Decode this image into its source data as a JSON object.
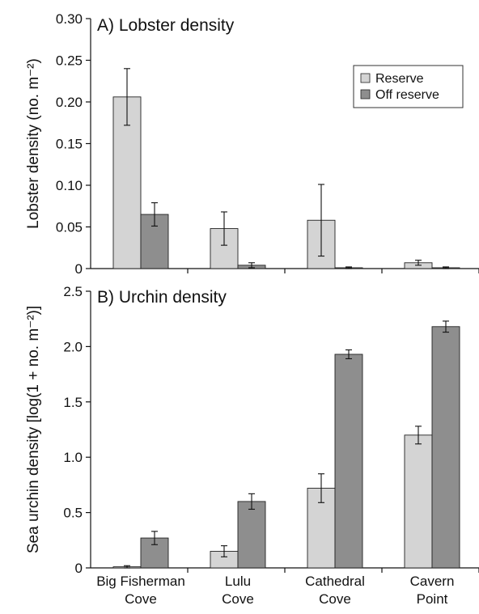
{
  "colors": {
    "reserve": "#d4d4d4",
    "off_reserve": "#8e8e8e",
    "bar_stroke": "#222222",
    "axis": "#111111"
  },
  "chart_data": [
    {
      "type": "bar",
      "title": "A) Lobster density",
      "ylabel": "Lobster density (no. m⁻²)",
      "ylim": [
        0,
        0.3
      ],
      "yticks": [
        "0",
        "0.05",
        "0.10",
        "0.15",
        "0.20",
        "0.25",
        "0.30"
      ],
      "categories": [
        "Big Fisherman Cove",
        "Lulu Cove",
        "Cathedral Cove",
        "Cavern Point"
      ],
      "show_category_labels": false,
      "legend": {
        "position": "top-right",
        "entries": [
          "Reserve",
          "Off reserve"
        ]
      },
      "series": [
        {
          "name": "Reserve",
          "values": [
            0.206,
            0.048,
            0.058,
            0.007
          ],
          "error": [
            0.034,
            0.02,
            0.043,
            0.003
          ]
        },
        {
          "name": "Off reserve",
          "values": [
            0.065,
            0.004,
            0.001,
            0.001
          ],
          "error": [
            0.014,
            0.003,
            0.001,
            0.001
          ]
        }
      ]
    },
    {
      "type": "bar",
      "title": "B) Urchin density",
      "ylabel": "Sea urchin density [log(1 + no. m⁻²)]",
      "ylim": [
        0,
        2.5
      ],
      "yticks": [
        "0",
        "0.5",
        "1.0",
        "1.5",
        "2.0",
        "2.5"
      ],
      "categories": [
        "Big Fisherman Cove",
        "Lulu Cove",
        "Cathedral Cove",
        "Cavern Point"
      ],
      "category_lines": [
        [
          "Big Fisherman",
          "Cove"
        ],
        [
          "Lulu",
          "Cove"
        ],
        [
          "Cathedral",
          "Cove"
        ],
        [
          "Cavern",
          "Point"
        ]
      ],
      "show_category_labels": true,
      "series": [
        {
          "name": "Reserve",
          "values": [
            0.01,
            0.15,
            0.72,
            1.2
          ],
          "error": [
            0.01,
            0.05,
            0.13,
            0.08
          ]
        },
        {
          "name": "Off reserve",
          "values": [
            0.27,
            0.6,
            1.93,
            2.18
          ],
          "error": [
            0.06,
            0.07,
            0.04,
            0.05
          ]
        }
      ]
    }
  ]
}
